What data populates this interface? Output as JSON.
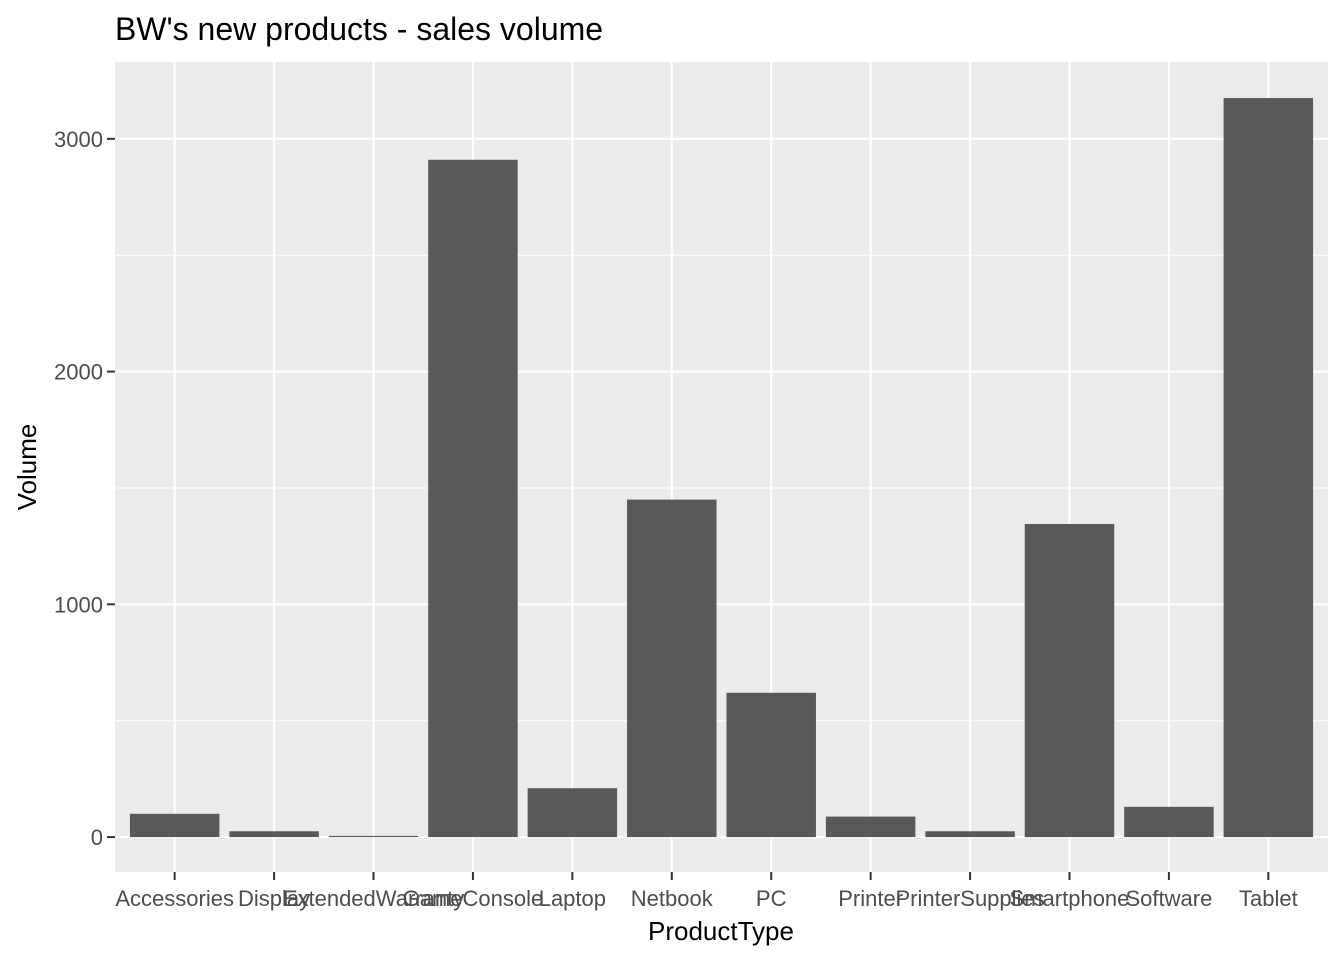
{
  "chart_data": {
    "type": "bar",
    "title": "BW's new products - sales volume",
    "xlabel": "ProductType",
    "ylabel": "Volume",
    "categories": [
      "Accessories",
      "Display",
      "ExtendedWarranty",
      "GameConsole",
      "Laptop",
      "Netbook",
      "PC",
      "Printer",
      "PrinterSupplies",
      "Smartphone",
      "Software",
      "Tablet"
    ],
    "values": [
      100,
      25,
      5,
      2910,
      210,
      1450,
      620,
      88,
      25,
      1345,
      130,
      3175
    ],
    "ylim": [
      -150,
      3330
    ],
    "yticks": [
      0,
      1000,
      2000,
      3000
    ],
    "grid": true,
    "colors": {
      "panel": "#ebebeb",
      "grid_major": "#ffffff",
      "bar": "#595959",
      "tick_text": "#4d4d4d"
    }
  }
}
